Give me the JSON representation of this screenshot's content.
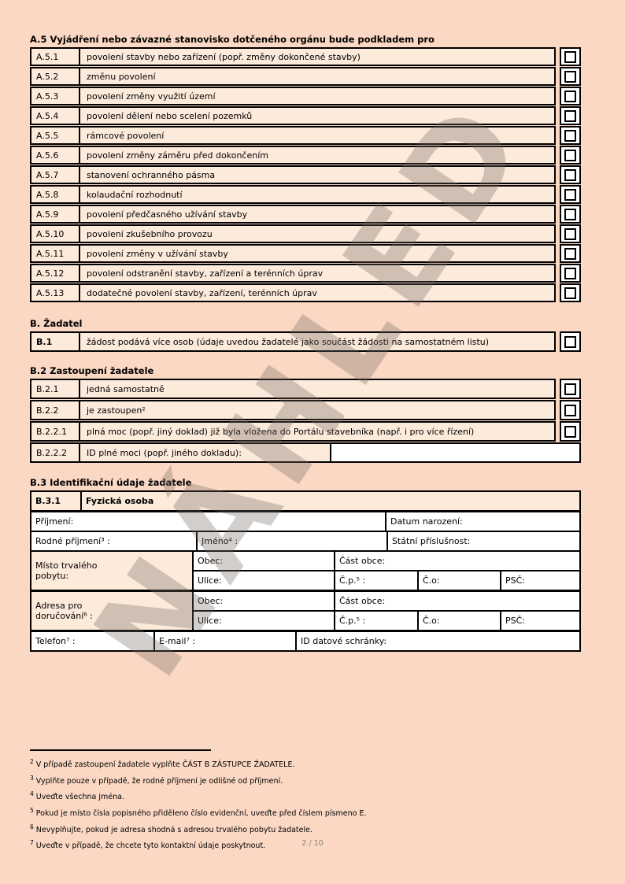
{
  "page": {
    "number": "2 / 10",
    "watermark": "NÁHLED"
  },
  "colors": {
    "page_bg": "#fbd8c3",
    "row_fill": "#fceadb",
    "field_bg": "#ffffff",
    "border": "#000000"
  },
  "section_a5": {
    "heading": "A.5 Vyjádření nebo závazné stanovisko dotčeného orgánu bude podkladem pro",
    "rows": [
      {
        "id": "A.5.1",
        "text": "povolení stavby nebo zařízení (popř. změny dokončené stavby)"
      },
      {
        "id": "A.5.2",
        "text": "změnu povolení"
      },
      {
        "id": "A.5.3",
        "text": "povolení změny využití území"
      },
      {
        "id": "A.5.4",
        "text": "povolení dělení nebo scelení pozemků"
      },
      {
        "id": "A.5.5",
        "text": "rámcové povolení"
      },
      {
        "id": "A.5.6",
        "text": "povolení změny záměru před dokončením"
      },
      {
        "id": "A.5.7",
        "text": "stanovení ochranného pásma"
      },
      {
        "id": "A.5.8",
        "text": "kolaudační rozhodnutí"
      },
      {
        "id": "A.5.9",
        "text": "povolení předčasného užívání stavby"
      },
      {
        "id": "A.5.10",
        "text": "povolení zkušebního provozu"
      },
      {
        "id": "A.5.11",
        "text": "povolení změny v užívání stavby"
      },
      {
        "id": "A.5.12",
        "text": "povolení odstranění stavby, zařízení a terénních úprav"
      },
      {
        "id": "A.5.13",
        "text": "dodatečné povolení stavby, zařízení, terénních úprav"
      }
    ]
  },
  "section_b": {
    "heading": "B. Žadatel",
    "rows": [
      {
        "id": "B.1",
        "text": "žádost podává více osob (údaje uvedou žadatelé jako součást žádosti na samostatném listu)"
      }
    ]
  },
  "section_b2": {
    "heading": "B.2 Zastoupení žadatele",
    "rows": [
      {
        "id": "B.2.1",
        "text": "jedná samostatně"
      },
      {
        "id": "B.2.2",
        "text": "je zastoupen²"
      },
      {
        "id": "B.2.2.1",
        "text": "plná moc (popř. jiný doklad) již byla vložena do Portálu stavebníka (např. i pro více řízení)"
      },
      {
        "id": "B.2.2.2",
        "text": "ID plné moci (popř. jiného dokladu):"
      }
    ]
  },
  "section_b3": {
    "heading": "B.3 Identifikační údaje žadatele",
    "subsection_id": "B.3.1",
    "subsection_title": "Fyzická osoba",
    "fields": {
      "surname": "Příjmení:",
      "birth_date": "Datum narození:",
      "birth_surname": "Rodné příjmení³ :",
      "first_name": "Jméno⁴ :",
      "nationality": "Státní příslušnost:",
      "permanent_residence": "Místo trvalého pobytu:",
      "delivery_address": "Adresa pro doručování⁶ :",
      "municipality": "Obec:",
      "municipality_part": "Část obce:",
      "street": "Ulice:",
      "house_number": "Č.p.⁵ :",
      "orientation_number": "Č.o:",
      "postal_code": "PSČ:",
      "phone": "Telefon⁷ :",
      "email": "E-mail⁷ :",
      "databox": "ID datové schránky:"
    }
  },
  "footnotes": [
    {
      "n": "2",
      "text": "V případě zastoupení žadatele vyplňte ČÁST B ZÁSTUPCE ŽADATELE."
    },
    {
      "n": "3",
      "text": "Vyplňte pouze v případě, že rodné příjmení je odlišné od příjmení."
    },
    {
      "n": "4",
      "text": "Uveďte všechna jména."
    },
    {
      "n": "5",
      "text": "Pokud je místo čísla popisného přiděleno číslo evidenční, uveďte před číslem písmeno E."
    },
    {
      "n": "6",
      "text": "Nevyplňujte, pokud je adresa shodná s adresou trvalého pobytu žadatele."
    },
    {
      "n": "7",
      "text": "Uveďte v případě, že chcete tyto kontaktní údaje poskytnout."
    }
  ]
}
